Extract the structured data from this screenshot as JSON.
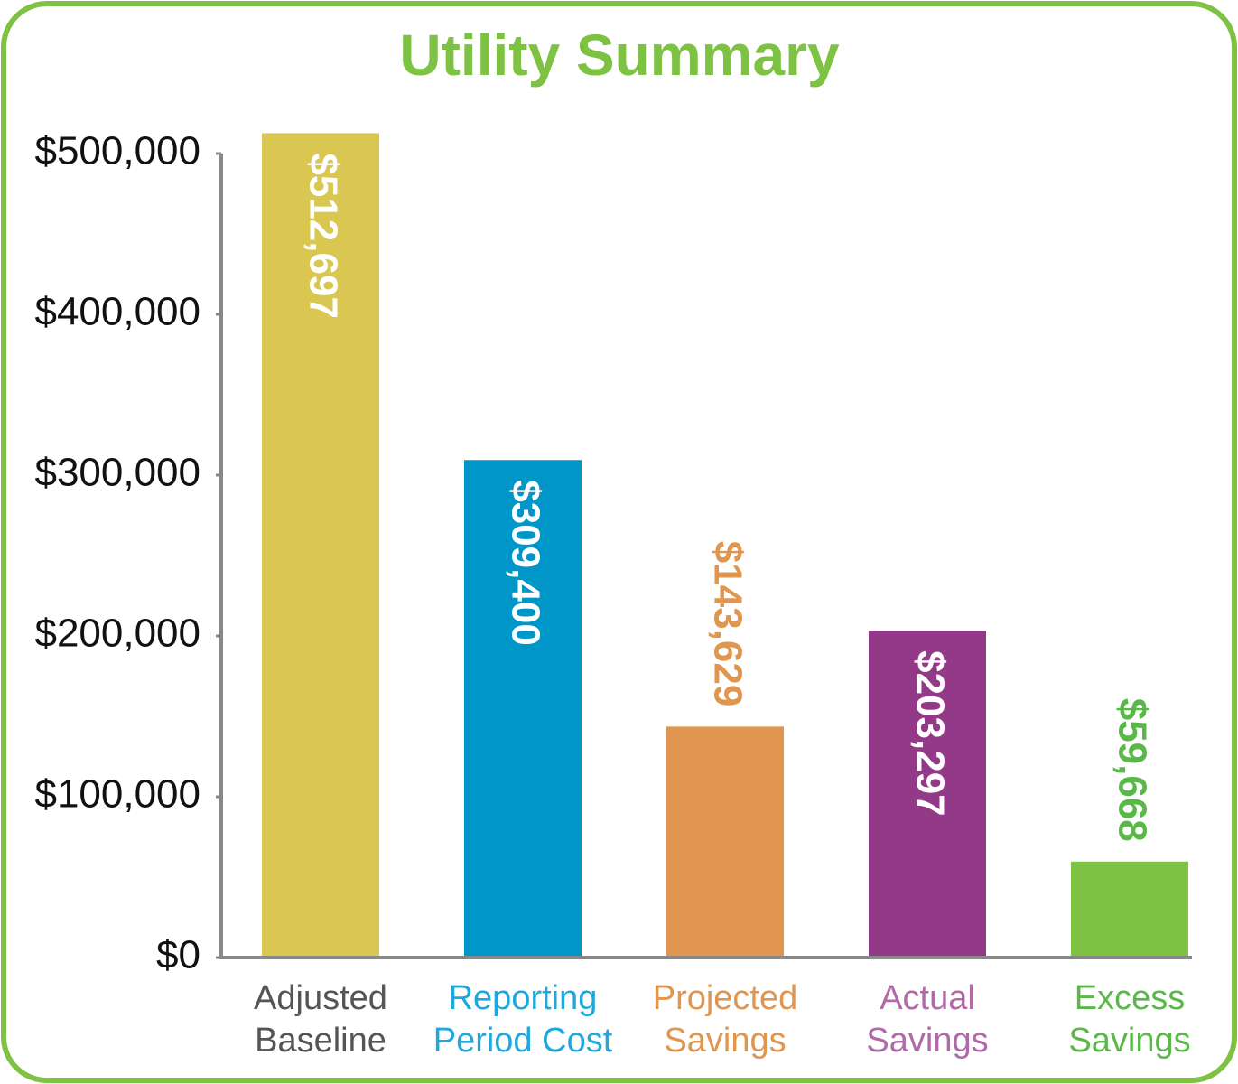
{
  "chart_data": {
    "type": "bar",
    "title": "Utility Summary",
    "categories": [
      "Adjusted\nBaseline",
      "Reporting\nPeriod Cost",
      "Projected\nSavings",
      "Actual\nSavings",
      "Excess\nSavings"
    ],
    "values": [
      512697,
      309400,
      143629,
      203297,
      59668
    ],
    "value_labels": [
      "$512,697",
      "$309,400",
      "$143,629",
      "$203,297",
      "$59,668"
    ],
    "colors": [
      "#d9c752",
      "#0096c8",
      "#e0964e",
      "#923a87",
      "#7dc242"
    ],
    "category_colors": [
      "#555555",
      "#1fa8dc",
      "#e0964e",
      "#b06aa8",
      "#5ab848"
    ],
    "ylim": [
      0,
      500000
    ],
    "yticks": [
      {
        "value": 0,
        "label": "$0"
      },
      {
        "value": 100000,
        "label": "$100,000"
      },
      {
        "value": 200000,
        "label": "$200,000"
      },
      {
        "value": 300000,
        "label": "$300,000"
      },
      {
        "value": 400000,
        "label": "$400,000"
      },
      {
        "value": 500000,
        "label": "$500,000"
      }
    ]
  }
}
